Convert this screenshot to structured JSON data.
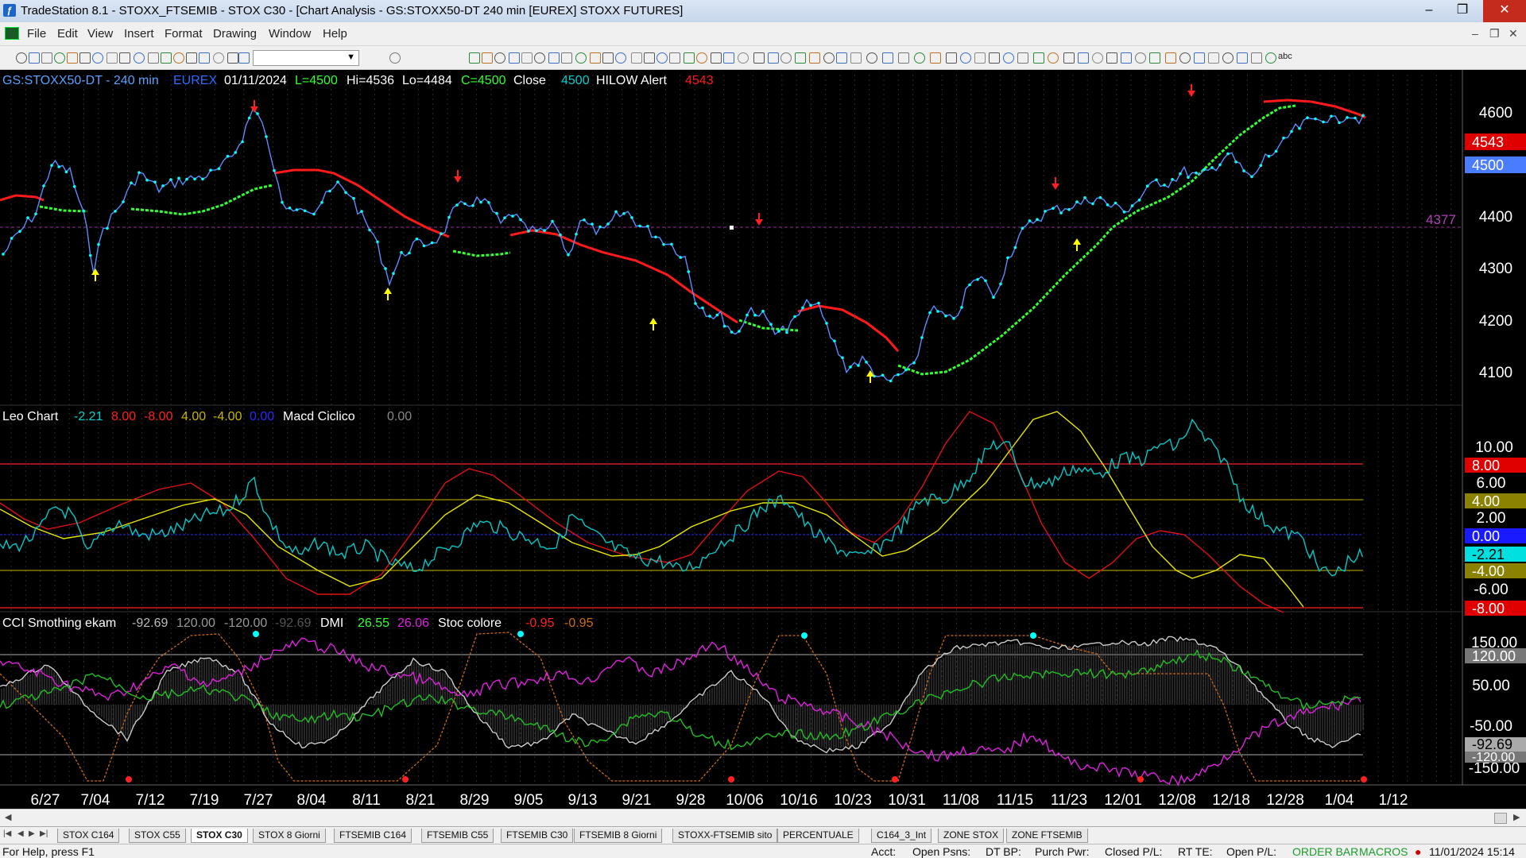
{
  "window": {
    "title": "TradeStation 8.1 - STOXX_FTSEMIB - STOX  C30 - [Chart Analysis - GS:STOXX50-DT  240 min  [EUREX] STOXX FUTURES]",
    "minimize": "–",
    "maximize": "❐",
    "close": "✕"
  },
  "menu": {
    "items": [
      "File",
      "Edit",
      "View",
      "Insert",
      "Format",
      "Drawing",
      "Window",
      "Help"
    ],
    "mdi_min": "–",
    "mdi_restore": "❐",
    "mdi_close": "✕"
  },
  "toolbar": {
    "combo_arrow": "▼",
    "abc_label": "abc"
  },
  "price_panel": {
    "symbol": "GS:STOXX50-DT - 240 min",
    "exchange": "EUREX",
    "date": "01/11/2024",
    "last": "L=4500",
    "high": "Hi=4536",
    "low": "Lo=4484",
    "close_val": "C=4500",
    "close_label": "Close",
    "close_num": "4500",
    "hilow_label": "HILOW Alert",
    "hilow_val": "4543",
    "y_ticks": [
      "4600",
      "4500",
      "4400",
      "4300",
      "4200",
      "4100"
    ],
    "tag_red": "4543",
    "tag_blue": "4500",
    "line_label": "4377"
  },
  "leo_panel": {
    "title": "Leo Chart",
    "values": [
      "-2.21",
      "8.00",
      "-8.00",
      "4.00",
      "-4.00",
      "0.00"
    ],
    "macd_label": "Macd Ciclico",
    "macd_val": "0.00",
    "y_ticks": [
      "10.00",
      "6.00",
      "2.00",
      "-6.00"
    ],
    "tags": [
      "8.00",
      "4.00",
      "0.00",
      "-2.21",
      "-4.00",
      "-8.00"
    ]
  },
  "cci_panel": {
    "title": "CCI Smothing ekam",
    "values": [
      "-92.69",
      "120.00",
      "-120.00",
      "-92.69"
    ],
    "dmi_label": "DMI",
    "dmi_vals": [
      "26.55",
      "26.06"
    ],
    "stoc_label": "Stoc colore",
    "stoc_vals": [
      "-0.95",
      "-0.95"
    ],
    "y_ticks": [
      "150.00",
      "50.00",
      "-50.00",
      "-150.00"
    ],
    "tags": [
      "120.00",
      "-92.69",
      "-120.00"
    ]
  },
  "x_axis": [
    "6/27",
    "7/04",
    "7/12",
    "7/19",
    "7/27",
    "8/04",
    "8/11",
    "8/21",
    "8/29",
    "9/05",
    "9/13",
    "9/21",
    "9/28",
    "10/06",
    "10/16",
    "10/23",
    "10/31",
    "11/08",
    "11/15",
    "11/23",
    "12/01",
    "12/08",
    "12/18",
    "12/28",
    "1/04",
    "1/12"
  ],
  "tabs": [
    "STOX C164",
    "STOX C55",
    "STOX  C30",
    "STOX  8 Giorni",
    "FTSEMIB C164",
    "FTSEMIB C55",
    "FTSEMIB C30",
    "FTSEMIB  8 Giorni",
    "STOXX-FTSEMIB sito",
    "PERCENTUALE",
    "C164_3_Int",
    "ZONE STOX",
    "ZONE FTSEMIB"
  ],
  "active_tab": 2,
  "status": {
    "help": "For Help, press F1",
    "acct": "Acct:",
    "open_psns": "Open Psns:",
    "dt_bp": "DT BP:",
    "purch_pwr": "Purch Pwr:",
    "closed_pl": "Closed P/L:",
    "rt_te": "RT TE:",
    "open_pl": "Open P/L:",
    "order_bar": "ORDER BAR",
    "macros": "MACROS",
    "datetime": "11/01/2024 15:14"
  },
  "colors": {
    "bg": "#000000",
    "price_line": "#5aa0ff",
    "price_dots": "#00ffff",
    "hilow_red": "#ff1a1a",
    "hilow_green": "#33ff33",
    "arrow_up": "#ffff00",
    "arrow_down": "#ff2020",
    "leo_cyan": "#00c8c8",
    "leo_red": "#e01010",
    "leo_yellow": "#e8e800",
    "cci_white": "#cccccc",
    "cci_magenta": "#e020e0",
    "cci_green": "#20c020",
    "cci_orange": "#d06a10",
    "axis_text": "#ffffff"
  }
}
